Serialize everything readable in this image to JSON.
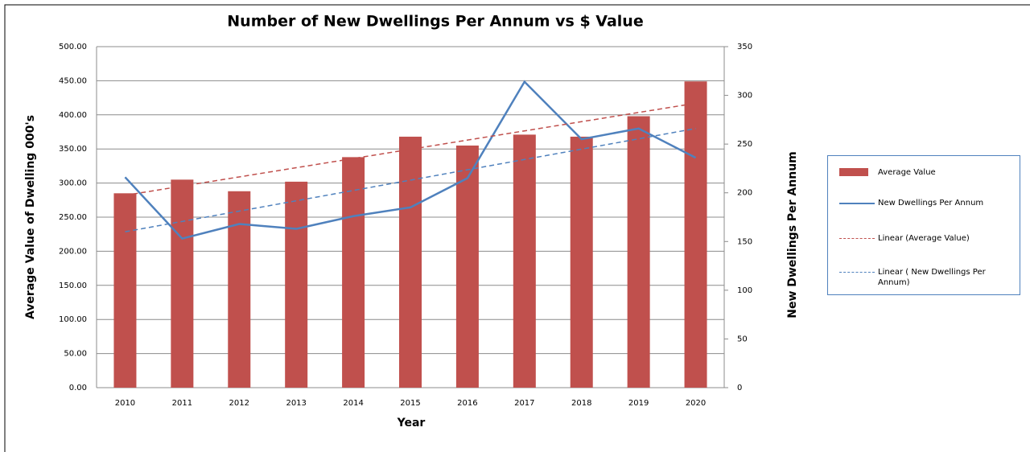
{
  "chart_data": {
    "type": "bar-line",
    "title": "Number of New Dwellings Per Annum vs $ Value",
    "x_label": "Year",
    "y_label": "Average Value of Dwelling 000's",
    "y2_label": "New Dwellings Per Annum",
    "categories": [
      "2010",
      "2011",
      "2012",
      "2013",
      "2014",
      "2015",
      "2016",
      "2017",
      "2018",
      "2019",
      "2020"
    ],
    "series": [
      {
        "name": "Average Value",
        "type": "bar",
        "color": "#c0504d",
        "values": [
          285,
          305,
          288,
          302,
          338,
          368,
          355,
          371,
          368,
          398,
          449
        ]
      },
      {
        "name": "New Dwellings Per Annum",
        "type": "line",
        "axis": "y2",
        "color": "#4f81bd",
        "values": [
          216,
          153,
          168,
          163,
          176,
          185,
          215,
          314,
          255,
          266,
          236
        ]
      },
      {
        "name": "Linear (Average Value)",
        "type": "trend",
        "color": "#c0504d",
        "values": [
          282,
          295.5,
          309,
          322.5,
          336,
          349.5,
          363,
          376.5,
          390,
          403.5,
          417
        ]
      },
      {
        "name": "Linear ( New Dwellings Per Annum)",
        "type": "trend",
        "axis": "y2",
        "color": "#4f81bd",
        "values": [
          160,
          170.6,
          181.2,
          191.8,
          202.4,
          213,
          223.6,
          234.2,
          244.8,
          255.4,
          266
        ]
      }
    ],
    "ylim": [
      0,
      500
    ],
    "yticks": [
      {
        "value": 0,
        "label": "0.00"
      },
      {
        "value": 50,
        "label": "50.00"
      },
      {
        "value": 100,
        "label": "100.00"
      },
      {
        "value": 150,
        "label": "150.00"
      },
      {
        "value": 200,
        "label": "200.00"
      },
      {
        "value": 250,
        "label": "250.00"
      },
      {
        "value": 300,
        "label": "300.00"
      },
      {
        "value": 350,
        "label": "350.00"
      },
      {
        "value": 400,
        "label": "400.00"
      },
      {
        "value": 450,
        "label": "450.00"
      },
      {
        "value": 500,
        "label": "500.00"
      }
    ],
    "y2lim": [
      0,
      350
    ],
    "y2ticks": [
      0,
      50,
      100,
      150,
      200,
      250,
      300,
      350
    ],
    "grid": true,
    "legend": "right"
  }
}
